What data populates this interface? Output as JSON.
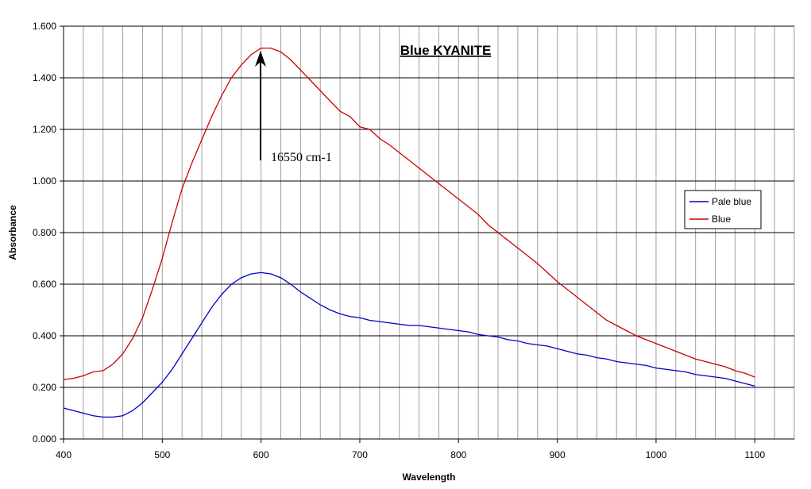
{
  "chart_data": {
    "type": "line",
    "title": "Blue KYANITE",
    "xlabel": "Wavelength",
    "ylabel": "Absorbance",
    "annotation": "16550 cm-1",
    "xlim": [
      400,
      1140
    ],
    "ylim": [
      0,
      1.6
    ],
    "xticks": [
      400,
      500,
      600,
      700,
      800,
      900,
      1000,
      1100
    ],
    "xminor": [
      420,
      440,
      460,
      480,
      520,
      540,
      560,
      580,
      620,
      640,
      660,
      680,
      720,
      740,
      760,
      780,
      820,
      840,
      860,
      880,
      920,
      940,
      960,
      980,
      1020,
      1040,
      1060,
      1080,
      1120,
      1140
    ],
    "yticks": [
      {
        "value": 0,
        "label": "0.000"
      },
      {
        "value": 0.2,
        "label": "0.200"
      },
      {
        "value": 0.4,
        "label": "0.400"
      },
      {
        "value": 0.6,
        "label": "0.600"
      },
      {
        "value": 0.8,
        "label": "0.800"
      },
      {
        "value": 1.0,
        "label": "1.000"
      },
      {
        "value": 1.2,
        "label": "1.200"
      },
      {
        "value": 1.4,
        "label": "1.400"
      },
      {
        "value": 1.6,
        "label": "1.600"
      }
    ],
    "grid": true,
    "legend": "right",
    "x": [
      400,
      410,
      420,
      430,
      440,
      450,
      460,
      470,
      480,
      490,
      500,
      510,
      520,
      530,
      540,
      550,
      560,
      570,
      580,
      590,
      600,
      610,
      620,
      630,
      640,
      650,
      660,
      670,
      680,
      690,
      700,
      710,
      720,
      730,
      740,
      750,
      760,
      770,
      780,
      790,
      800,
      810,
      820,
      830,
      840,
      850,
      860,
      870,
      880,
      890,
      900,
      910,
      920,
      930,
      940,
      950,
      960,
      970,
      980,
      990,
      1000,
      1010,
      1020,
      1030,
      1040,
      1050,
      1060,
      1070,
      1080,
      1090,
      1100
    ],
    "series": [
      {
        "name": "Pale blue",
        "color": "#0000cc",
        "values": [
          0.12,
          0.11,
          0.1,
          0.09,
          0.085,
          0.085,
          0.09,
          0.11,
          0.14,
          0.18,
          0.22,
          0.27,
          0.33,
          0.39,
          0.45,
          0.51,
          0.56,
          0.6,
          0.625,
          0.64,
          0.645,
          0.64,
          0.625,
          0.6,
          0.57,
          0.545,
          0.52,
          0.5,
          0.485,
          0.475,
          0.47,
          0.46,
          0.455,
          0.45,
          0.445,
          0.44,
          0.44,
          0.435,
          0.43,
          0.425,
          0.42,
          0.415,
          0.405,
          0.4,
          0.395,
          0.385,
          0.38,
          0.37,
          0.365,
          0.36,
          0.35,
          0.34,
          0.33,
          0.325,
          0.315,
          0.31,
          0.3,
          0.295,
          0.29,
          0.285,
          0.275,
          0.27,
          0.265,
          0.26,
          0.25,
          0.245,
          0.24,
          0.235,
          0.225,
          0.215,
          0.205
        ]
      },
      {
        "name": "Blue",
        "color": "#cc0000",
        "values": [
          0.23,
          0.235,
          0.245,
          0.26,
          0.265,
          0.29,
          0.33,
          0.39,
          0.47,
          0.58,
          0.7,
          0.84,
          0.97,
          1.07,
          1.16,
          1.25,
          1.33,
          1.4,
          1.45,
          1.49,
          1.515,
          1.515,
          1.5,
          1.47,
          1.43,
          1.39,
          1.35,
          1.31,
          1.27,
          1.25,
          1.21,
          1.2,
          1.165,
          1.14,
          1.11,
          1.08,
          1.05,
          1.02,
          0.99,
          0.96,
          0.93,
          0.9,
          0.87,
          0.83,
          0.8,
          0.77,
          0.74,
          0.71,
          0.68,
          0.645,
          0.61,
          0.58,
          0.55,
          0.52,
          0.49,
          0.46,
          0.44,
          0.42,
          0.4,
          0.385,
          0.37,
          0.355,
          0.34,
          0.325,
          0.31,
          0.3,
          0.29,
          0.28,
          0.265,
          0.255,
          0.24
        ]
      }
    ]
  }
}
